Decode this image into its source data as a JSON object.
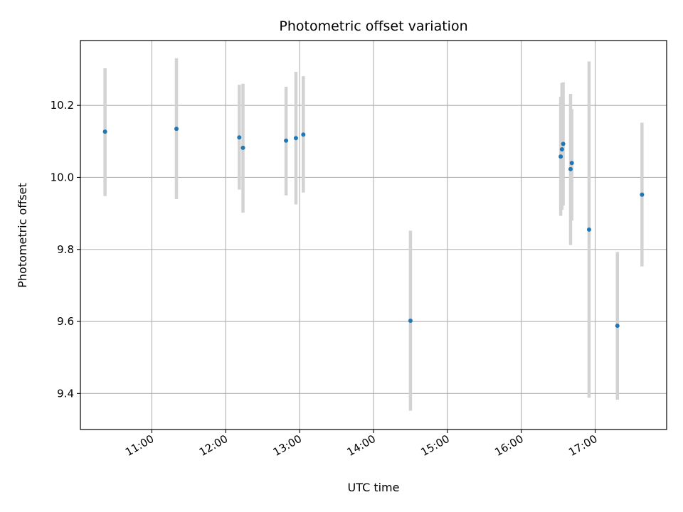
{
  "chart_data": {
    "type": "scatter",
    "title": "Photometric offset variation",
    "xlabel": "UTC time",
    "ylabel": "Photometric offset",
    "x_scale": "time",
    "xlim": [
      "10:02",
      "17:58"
    ],
    "ylim": [
      9.3,
      10.38
    ],
    "x_ticks": [
      "11:00",
      "12:00",
      "13:00",
      "14:00",
      "15:00",
      "16:00",
      "17:00"
    ],
    "y_ticks": [
      9.4,
      9.6,
      9.8,
      10.0,
      10.2
    ],
    "y_tick_labels": [
      "9.4",
      "9.6",
      "9.8",
      "10.0",
      "10.2"
    ],
    "grid": true,
    "colors": {
      "point": "#1f77b4",
      "errorbar": "#d3d3d3",
      "grid": "#b0b0b0"
    },
    "points": [
      {
        "x": "10:22",
        "y": 10.127,
        "ylow": 9.948,
        "yhigh": 10.303
      },
      {
        "x": "11:20",
        "y": 10.135,
        "ylow": 9.94,
        "yhigh": 10.331
      },
      {
        "x": "12:11",
        "y": 10.111,
        "ylow": 9.966,
        "yhigh": 10.257
      },
      {
        "x": "12:14",
        "y": 10.082,
        "ylow": 9.902,
        "yhigh": 10.26
      },
      {
        "x": "12:49",
        "y": 10.102,
        "ylow": 9.95,
        "yhigh": 10.252
      },
      {
        "x": "12:57",
        "y": 10.109,
        "ylow": 9.925,
        "yhigh": 10.293
      },
      {
        "x": "13:03",
        "y": 10.119,
        "ylow": 9.958,
        "yhigh": 10.281
      },
      {
        "x": "14:30",
        "y": 9.602,
        "ylow": 9.352,
        "yhigh": 9.852
      },
      {
        "x": "16:32",
        "y": 10.058,
        "ylow": 9.893,
        "yhigh": 10.224
      },
      {
        "x": "16:33",
        "y": 10.078,
        "ylow": 9.91,
        "yhigh": 10.262
      },
      {
        "x": "16:34",
        "y": 10.093,
        "ylow": 9.922,
        "yhigh": 10.264
      },
      {
        "x": "16:40",
        "y": 10.023,
        "ylow": 9.812,
        "yhigh": 10.232
      },
      {
        "x": "16:41",
        "y": 10.04,
        "ylow": 9.88,
        "yhigh": 10.19
      },
      {
        "x": "16:55",
        "y": 9.855,
        "ylow": 9.388,
        "yhigh": 10.322
      },
      {
        "x": "17:18",
        "y": 9.588,
        "ylow": 9.383,
        "yhigh": 9.793
      },
      {
        "x": "17:38",
        "y": 9.952,
        "ylow": 9.753,
        "yhigh": 10.152
      }
    ]
  }
}
